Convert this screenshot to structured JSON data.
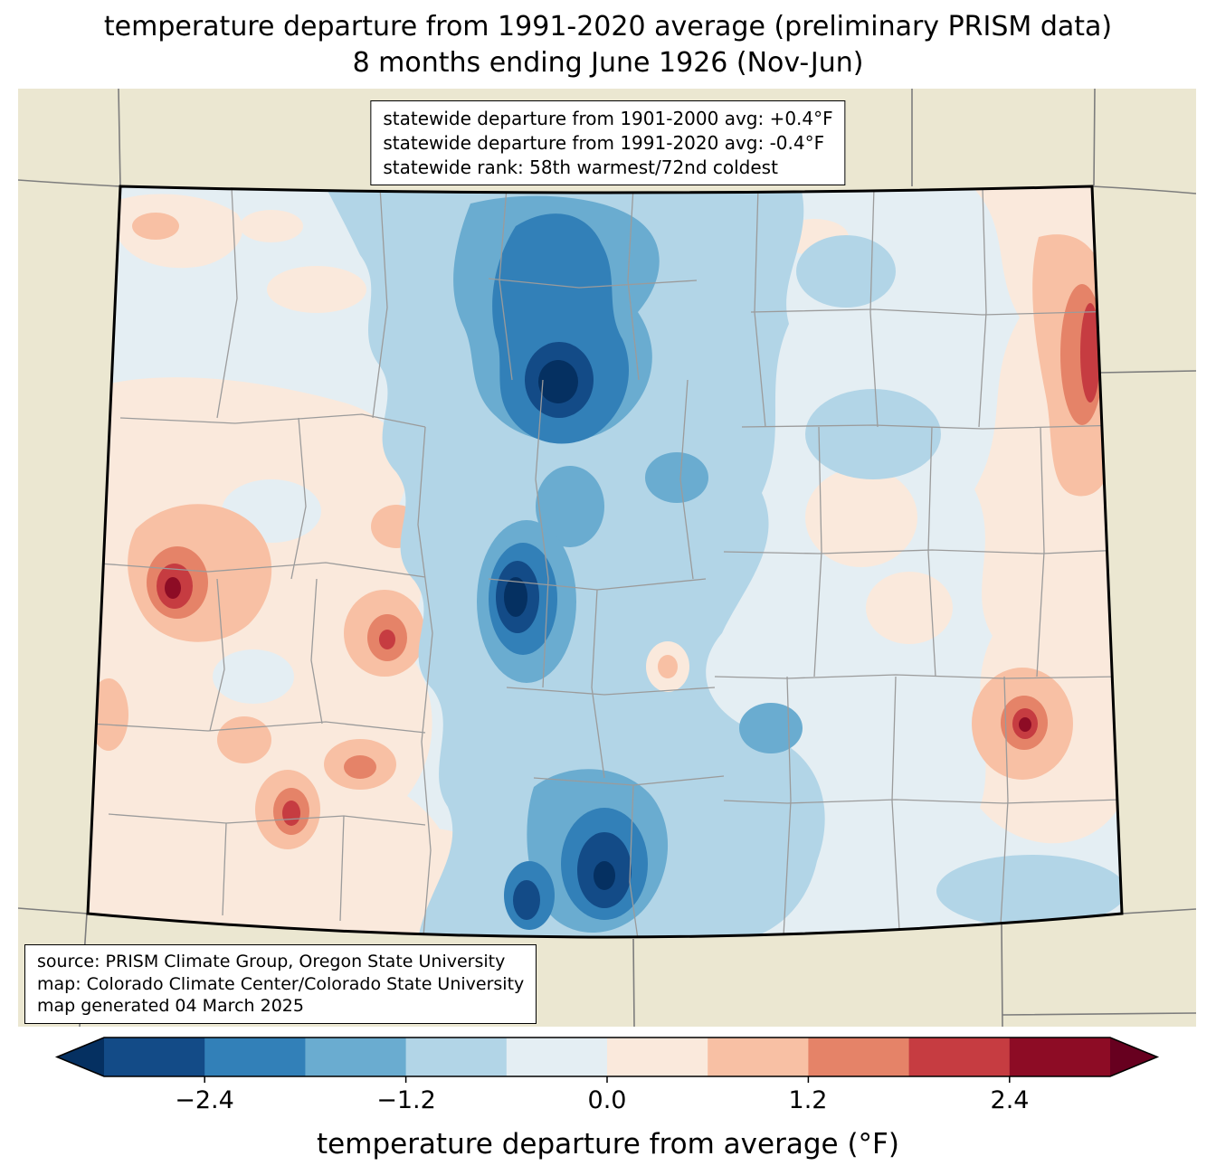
{
  "title": {
    "line1": "temperature departure from 1991-2020 average (preliminary PRISM data)",
    "line2": "8 months ending June 1926 (Nov-Jun)"
  },
  "stats_box": {
    "line1": "statewide departure from 1901-2000 avg: +0.4°F",
    "line2": "statewide departure from 1991-2020 avg: -0.4°F",
    "line3": "statewide rank: 58th warmest/72nd coldest"
  },
  "credits_box": {
    "line1": "source: PRISM Climate Group, Oregon State University",
    "line2": "map: Colorado Climate Center/Colorado State University",
    "line3": "map generated 04 March 2025"
  },
  "colorbar": {
    "label": "temperature departure from average (°F)",
    "ticks": [
      "−2.4",
      "−1.2",
      "0.0",
      "1.2",
      "2.4"
    ],
    "tick_values": [
      -2.4,
      -1.2,
      0.0,
      1.2,
      2.4
    ],
    "range": [
      -3.0,
      3.0
    ],
    "step": 0.6,
    "segment_colors": [
      "#134b87",
      "#3280b8",
      "#6aacd0",
      "#b2d5e7",
      "#e4eef3",
      "#fae9dc",
      "#f8c0a4",
      "#e58368",
      "#c63c41",
      "#8d0c25"
    ],
    "under_color": "#053061",
    "over_color": "#67001f"
  },
  "map": {
    "region": "Colorado",
    "background_color": "#ebe7d1",
    "state_border_color": "#000000",
    "county_line_color": "#9b9b9b",
    "neighbor_line_color": "#7d7d7d"
  },
  "chart_data": {
    "type": "heatmap",
    "title": "temperature departure from 1991-2020 average (preliminary PRISM data), 8 months ending June 1926 (Nov-Jun)",
    "colorbar_label": "temperature departure from average (°F)",
    "colorbar_ticks": [
      -2.4,
      -1.2,
      0.0,
      1.2,
      2.4
    ],
    "contour_levels_f": [
      -3.0,
      -2.4,
      -1.8,
      -1.2,
      -0.6,
      0.0,
      0.6,
      1.2,
      1.8,
      2.4,
      3.0
    ],
    "statewide_departure_from_1901_2000_avg_f": 0.4,
    "statewide_departure_from_1991_2020_avg_f": -0.4,
    "statewide_rank": "58th warmest/72nd coldest",
    "pattern_summary": "cold anomalies (down to below -3.0°F) along the central mountain corridor from north to south; warm anomalies (up to ~2.4°F) over western valleys and along the far eastern border"
  }
}
